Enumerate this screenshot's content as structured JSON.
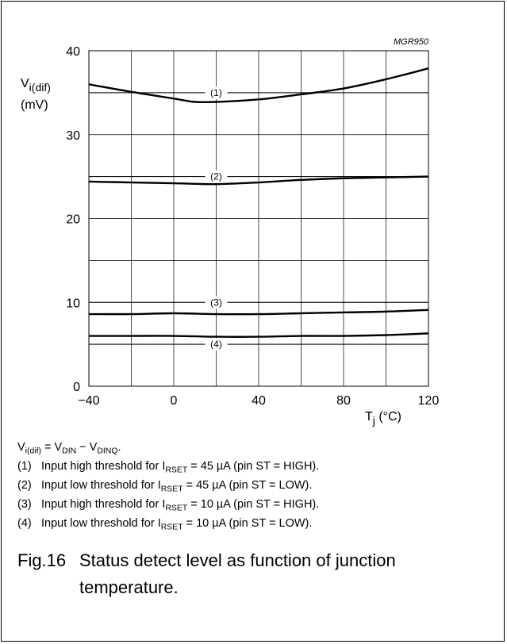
{
  "chart_data": {
    "type": "line",
    "figure_code": "MGR950",
    "ylabel": {
      "main": "V",
      "sub": "i(dif)",
      "unit": "(mV)"
    },
    "xlabel": {
      "main": "T",
      "sub": "j",
      "unit": " (°C)"
    },
    "xlim": [
      -40,
      120
    ],
    "ylim": [
      0,
      40
    ],
    "x_ticks": [
      -40,
      0,
      40,
      80,
      120
    ],
    "x_tick_labels": [
      "−40",
      "0",
      "40",
      "80",
      "120"
    ],
    "y_ticks": [
      0,
      10,
      20,
      30,
      40
    ],
    "y_tick_labels": [
      "0",
      "10",
      "20",
      "30",
      "40"
    ],
    "grid": true,
    "threshold_lines": [
      {
        "label": "(1)",
        "y": 35
      },
      {
        "label": "(2)",
        "y": 25
      },
      {
        "label": "(3)",
        "y": 10
      },
      {
        "label": "(4)",
        "y": 5
      }
    ],
    "series": [
      {
        "x": [
          -40,
          -20,
          0,
          10,
          20,
          40,
          60,
          80,
          100,
          120
        ],
        "y": [
          36.0,
          35.1,
          34.3,
          33.9,
          33.9,
          34.2,
          34.8,
          35.5,
          36.6,
          37.9
        ]
      },
      {
        "x": [
          -40,
          -20,
          0,
          20,
          40,
          60,
          80,
          100,
          120
        ],
        "y": [
          24.4,
          24.3,
          24.2,
          24.1,
          24.3,
          24.6,
          24.8,
          24.9,
          25.0
        ]
      },
      {
        "x": [
          -40,
          -20,
          0,
          20,
          40,
          60,
          80,
          100,
          120
        ],
        "y": [
          8.6,
          8.6,
          8.7,
          8.6,
          8.6,
          8.7,
          8.8,
          8.9,
          9.1
        ]
      },
      {
        "x": [
          -40,
          -20,
          0,
          20,
          40,
          60,
          80,
          100,
          120
        ],
        "y": [
          6.0,
          6.0,
          6.0,
          5.9,
          5.9,
          6.0,
          6.0,
          6.1,
          6.3
        ]
      }
    ]
  },
  "notes": {
    "definition": {
      "lhs": "V",
      "lhs_sub": "i(dif)",
      "eq": " = V",
      "a_sub": "DIN",
      "minus": " − V",
      "b_sub": "DINQ",
      "end": "."
    },
    "items": [
      {
        "num": "(1)",
        "pre": "Input high threshold for I",
        "sub": "RSET",
        "post": " = 45 µA (pin ST = HIGH)."
      },
      {
        "num": "(2)",
        "pre": "Input low threshold for I",
        "sub": "RSET",
        "post": " = 45 µA (pin ST = LOW)."
      },
      {
        "num": "(3)",
        "pre": "Input high threshold for I",
        "sub": "RSET",
        "post": " = 10 µA (pin ST = HIGH)."
      },
      {
        "num": "(4)",
        "pre": "Input low threshold for I",
        "sub": "RSET",
        "post": " = 10 µA (pin ST = LOW)."
      }
    ]
  },
  "caption": {
    "number": "Fig.16",
    "line1": "Status detect level as function of junction",
    "line2": "temperature."
  }
}
